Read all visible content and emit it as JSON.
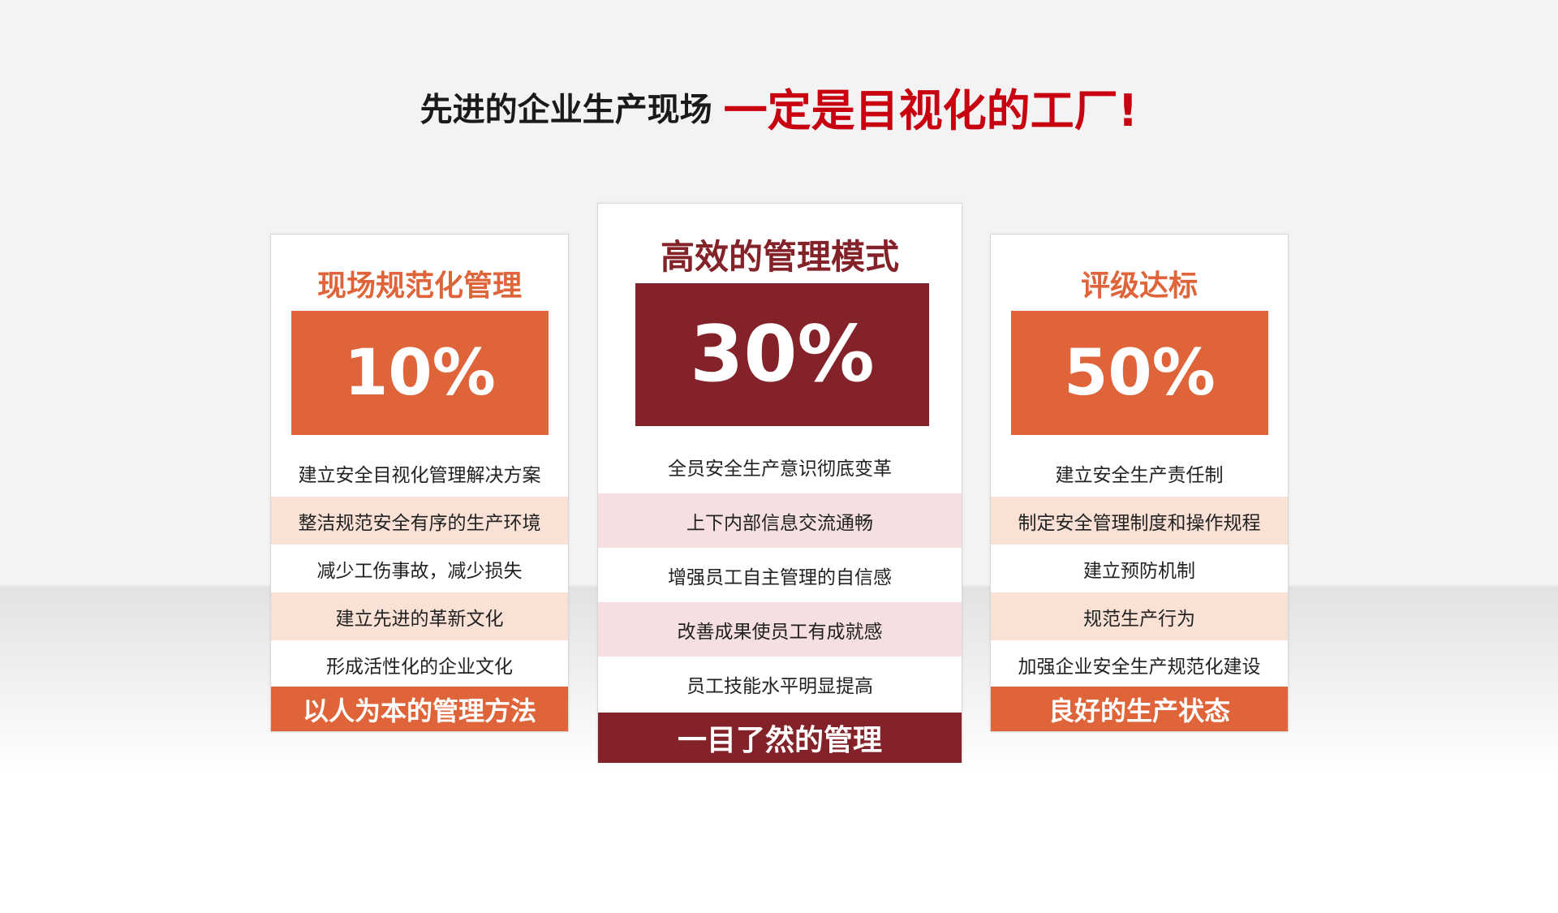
{
  "headline": {
    "lead": "先进的企业生产现场",
    "emphasis": "一定是目视化的工厂!"
  },
  "colors": {
    "orange": "#e0643a",
    "dark_red": "#832228",
    "headline_red": "#c8000f",
    "peach": "#fae1d5",
    "pink": "#f5dfe1"
  },
  "cards": [
    {
      "title": "现场规范化管理",
      "percent": "10%",
      "items": [
        "建立安全目视化管理解决方案",
        "整洁规范安全有序的生产环境",
        "减少工伤事故，减少损失",
        "建立先进的革新文化",
        "形成活性化的企业文化"
      ],
      "footer": "以人为本的管理方法"
    },
    {
      "title": "高效的管理模式",
      "percent": "30%",
      "items": [
        "全员安全生产意识彻底变革",
        "上下内部信息交流通畅",
        "增强员工自主管理的自信感",
        "改善成果使员工有成就感",
        "员工技能水平明显提高"
      ],
      "footer": "一目了然的管理"
    },
    {
      "title": "评级达标",
      "percent": "50%",
      "items": [
        "建立安全生产责任制",
        "制定安全管理制度和操作规程",
        "建立预防机制",
        "规范生产行为",
        "加强企业安全生产规范化建设"
      ],
      "footer": "良好的生产状态"
    }
  ]
}
